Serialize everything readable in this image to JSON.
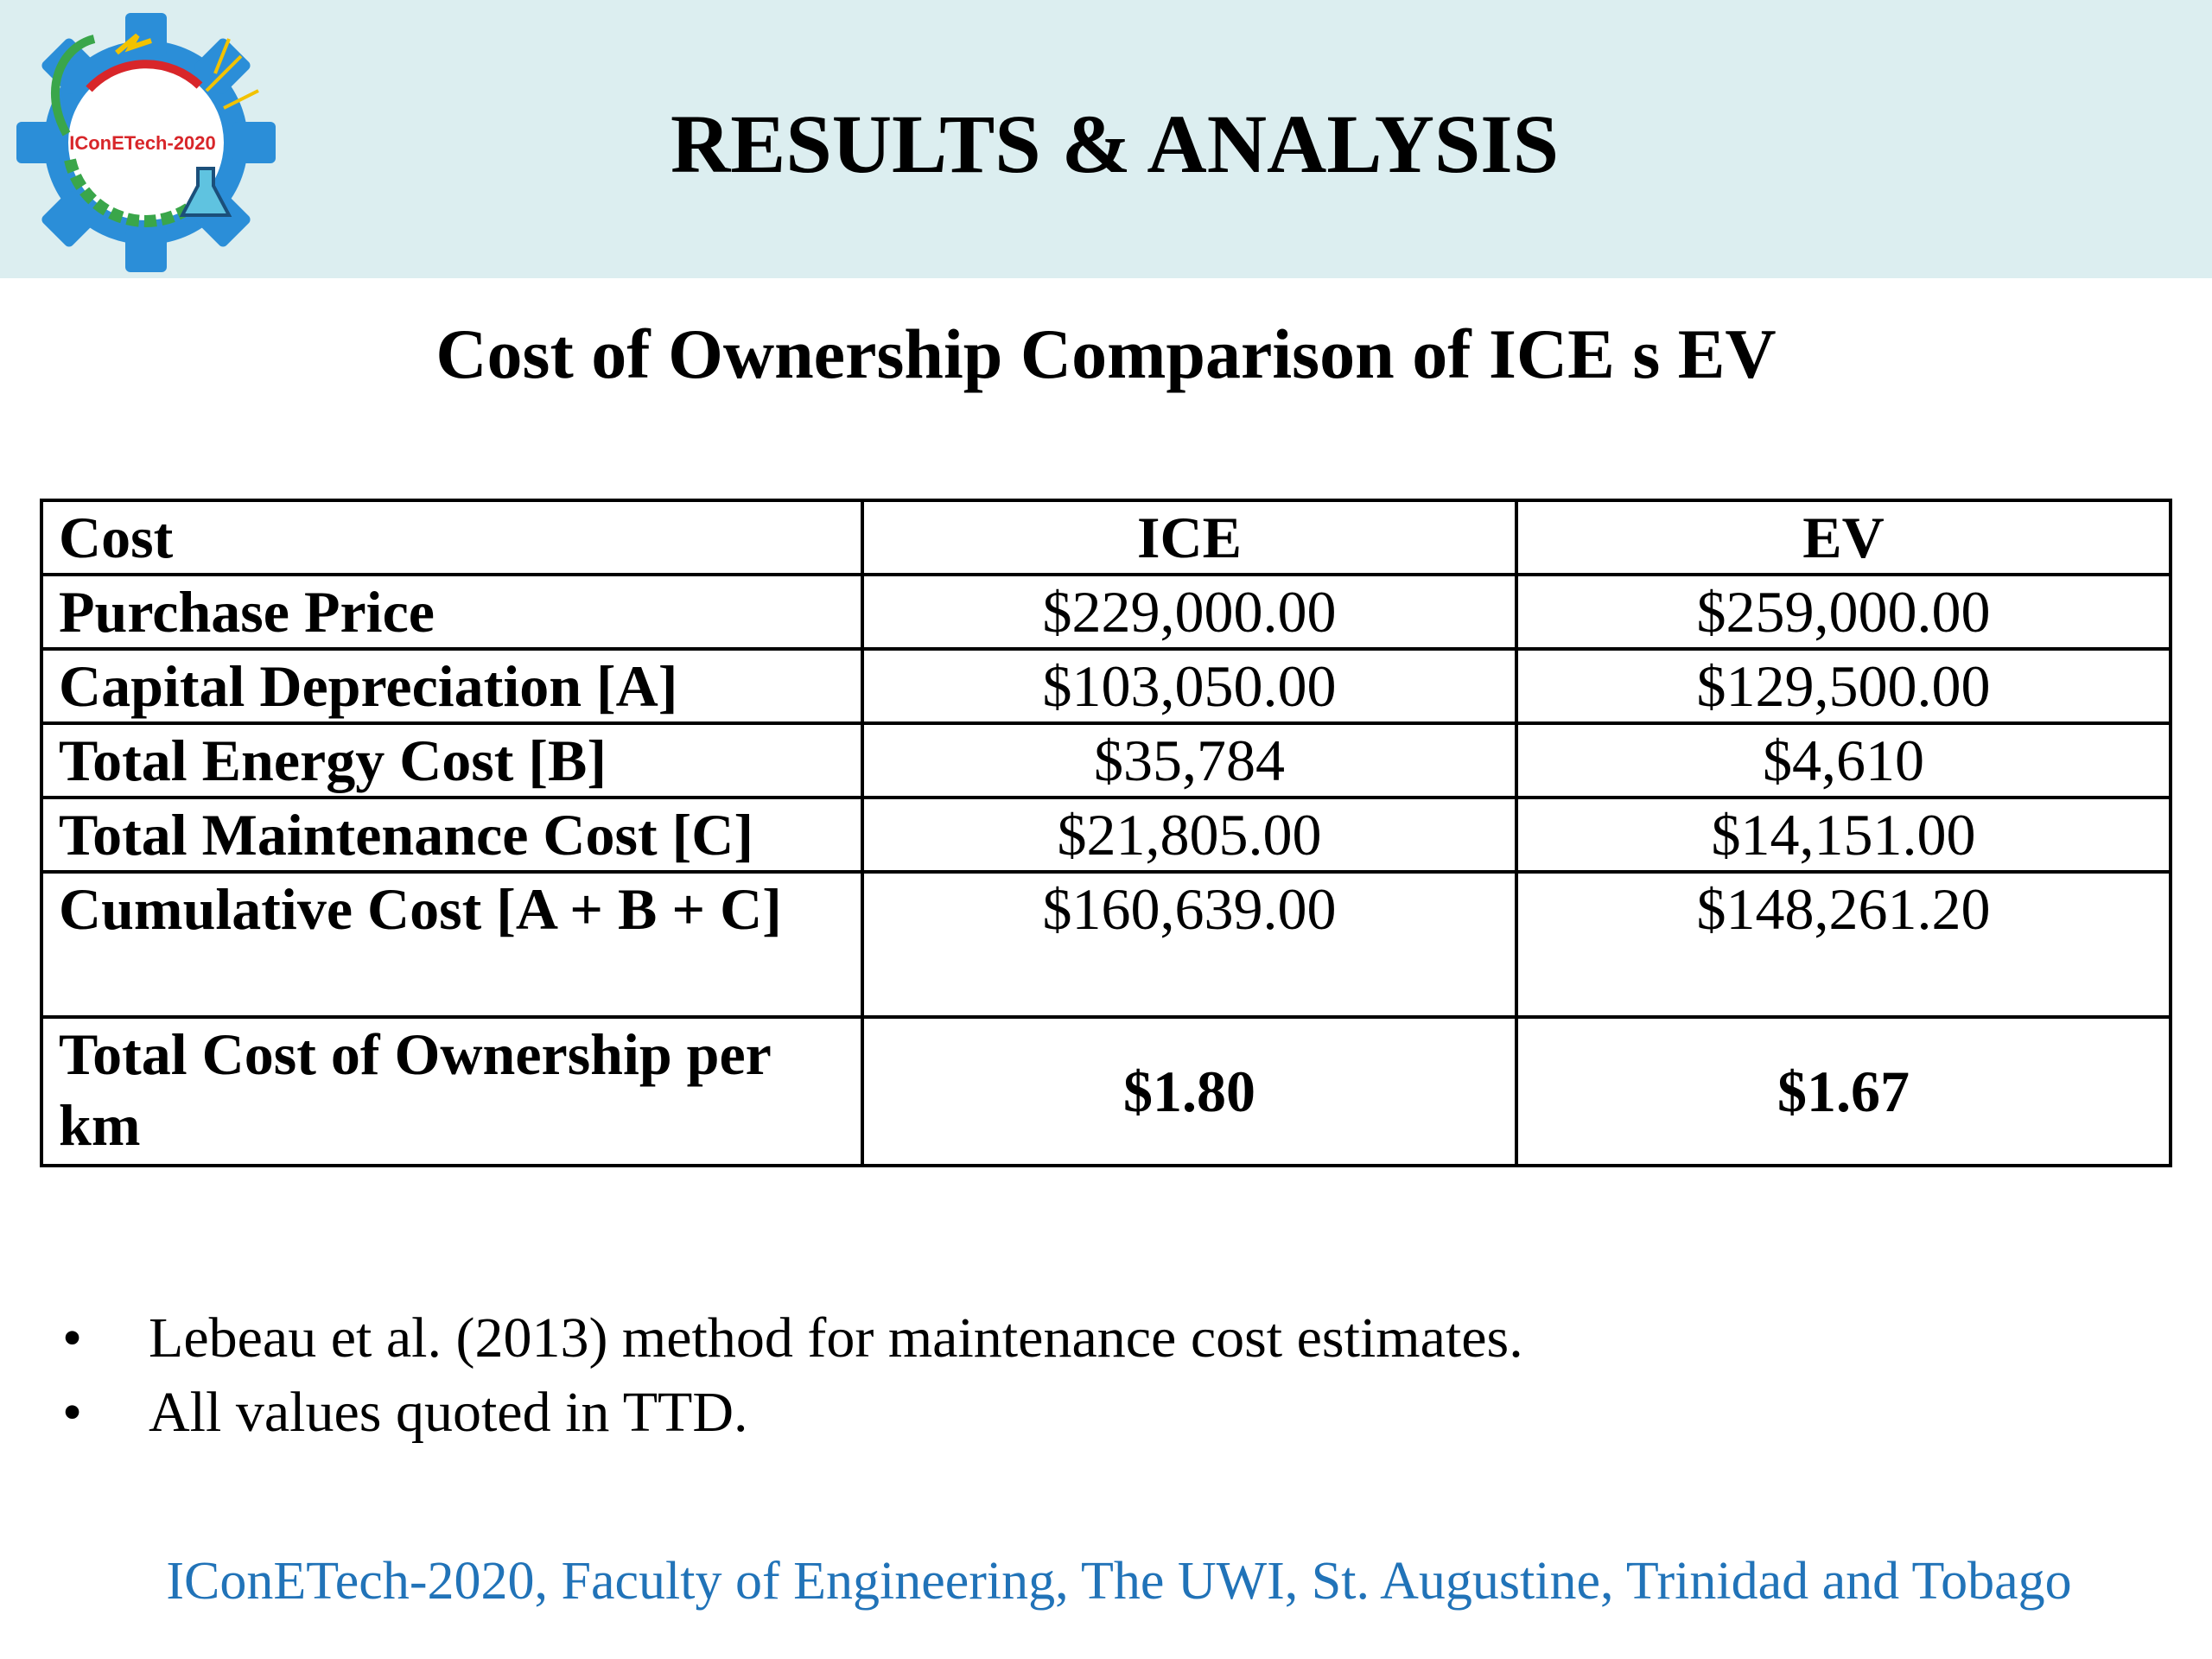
{
  "header": {
    "title": "RESULTS & ANALYSIS",
    "logo_text": "IConETech-2020"
  },
  "subtitle": "Cost of Ownership Comparison of ICE s EV",
  "table": {
    "columns": [
      "Cost",
      "ICE",
      "EV"
    ],
    "rows": [
      {
        "label": "Purchase Price",
        "ice": "$229,000.00",
        "ev": "$259,000.00"
      },
      {
        "label": "Capital Depreciation [A]",
        "ice": "$103,050.00",
        "ev": "$129,500.00"
      },
      {
        "label": "Total Energy Cost [B]",
        "ice": "$35,784",
        "ev": "$4,610"
      },
      {
        "label": "Total Maintenance Cost [C]",
        "ice": "$21,805.00",
        "ev": "$14,151.00"
      },
      {
        "label": "Cumulative Cost [A + B + C]",
        "ice": "$160,639.00",
        "ev": "$148,261.20"
      },
      {
        "label": "Total Cost of Ownership per km",
        "ice": "$1.80",
        "ev": "$1.67"
      }
    ]
  },
  "notes": [
    "Lebeau et al. (2013) method for maintenance cost estimates.",
    "All values quoted in TTD."
  ],
  "bullet_char": "•",
  "footer": "IConETech-2020, Faculty of Engineering, The UWI, St. Augustine, Trinidad and Tobago",
  "colors": {
    "header_band": "#dceef0",
    "footer_text": "#2173b8",
    "logo_gear": "#2b8ed8"
  }
}
